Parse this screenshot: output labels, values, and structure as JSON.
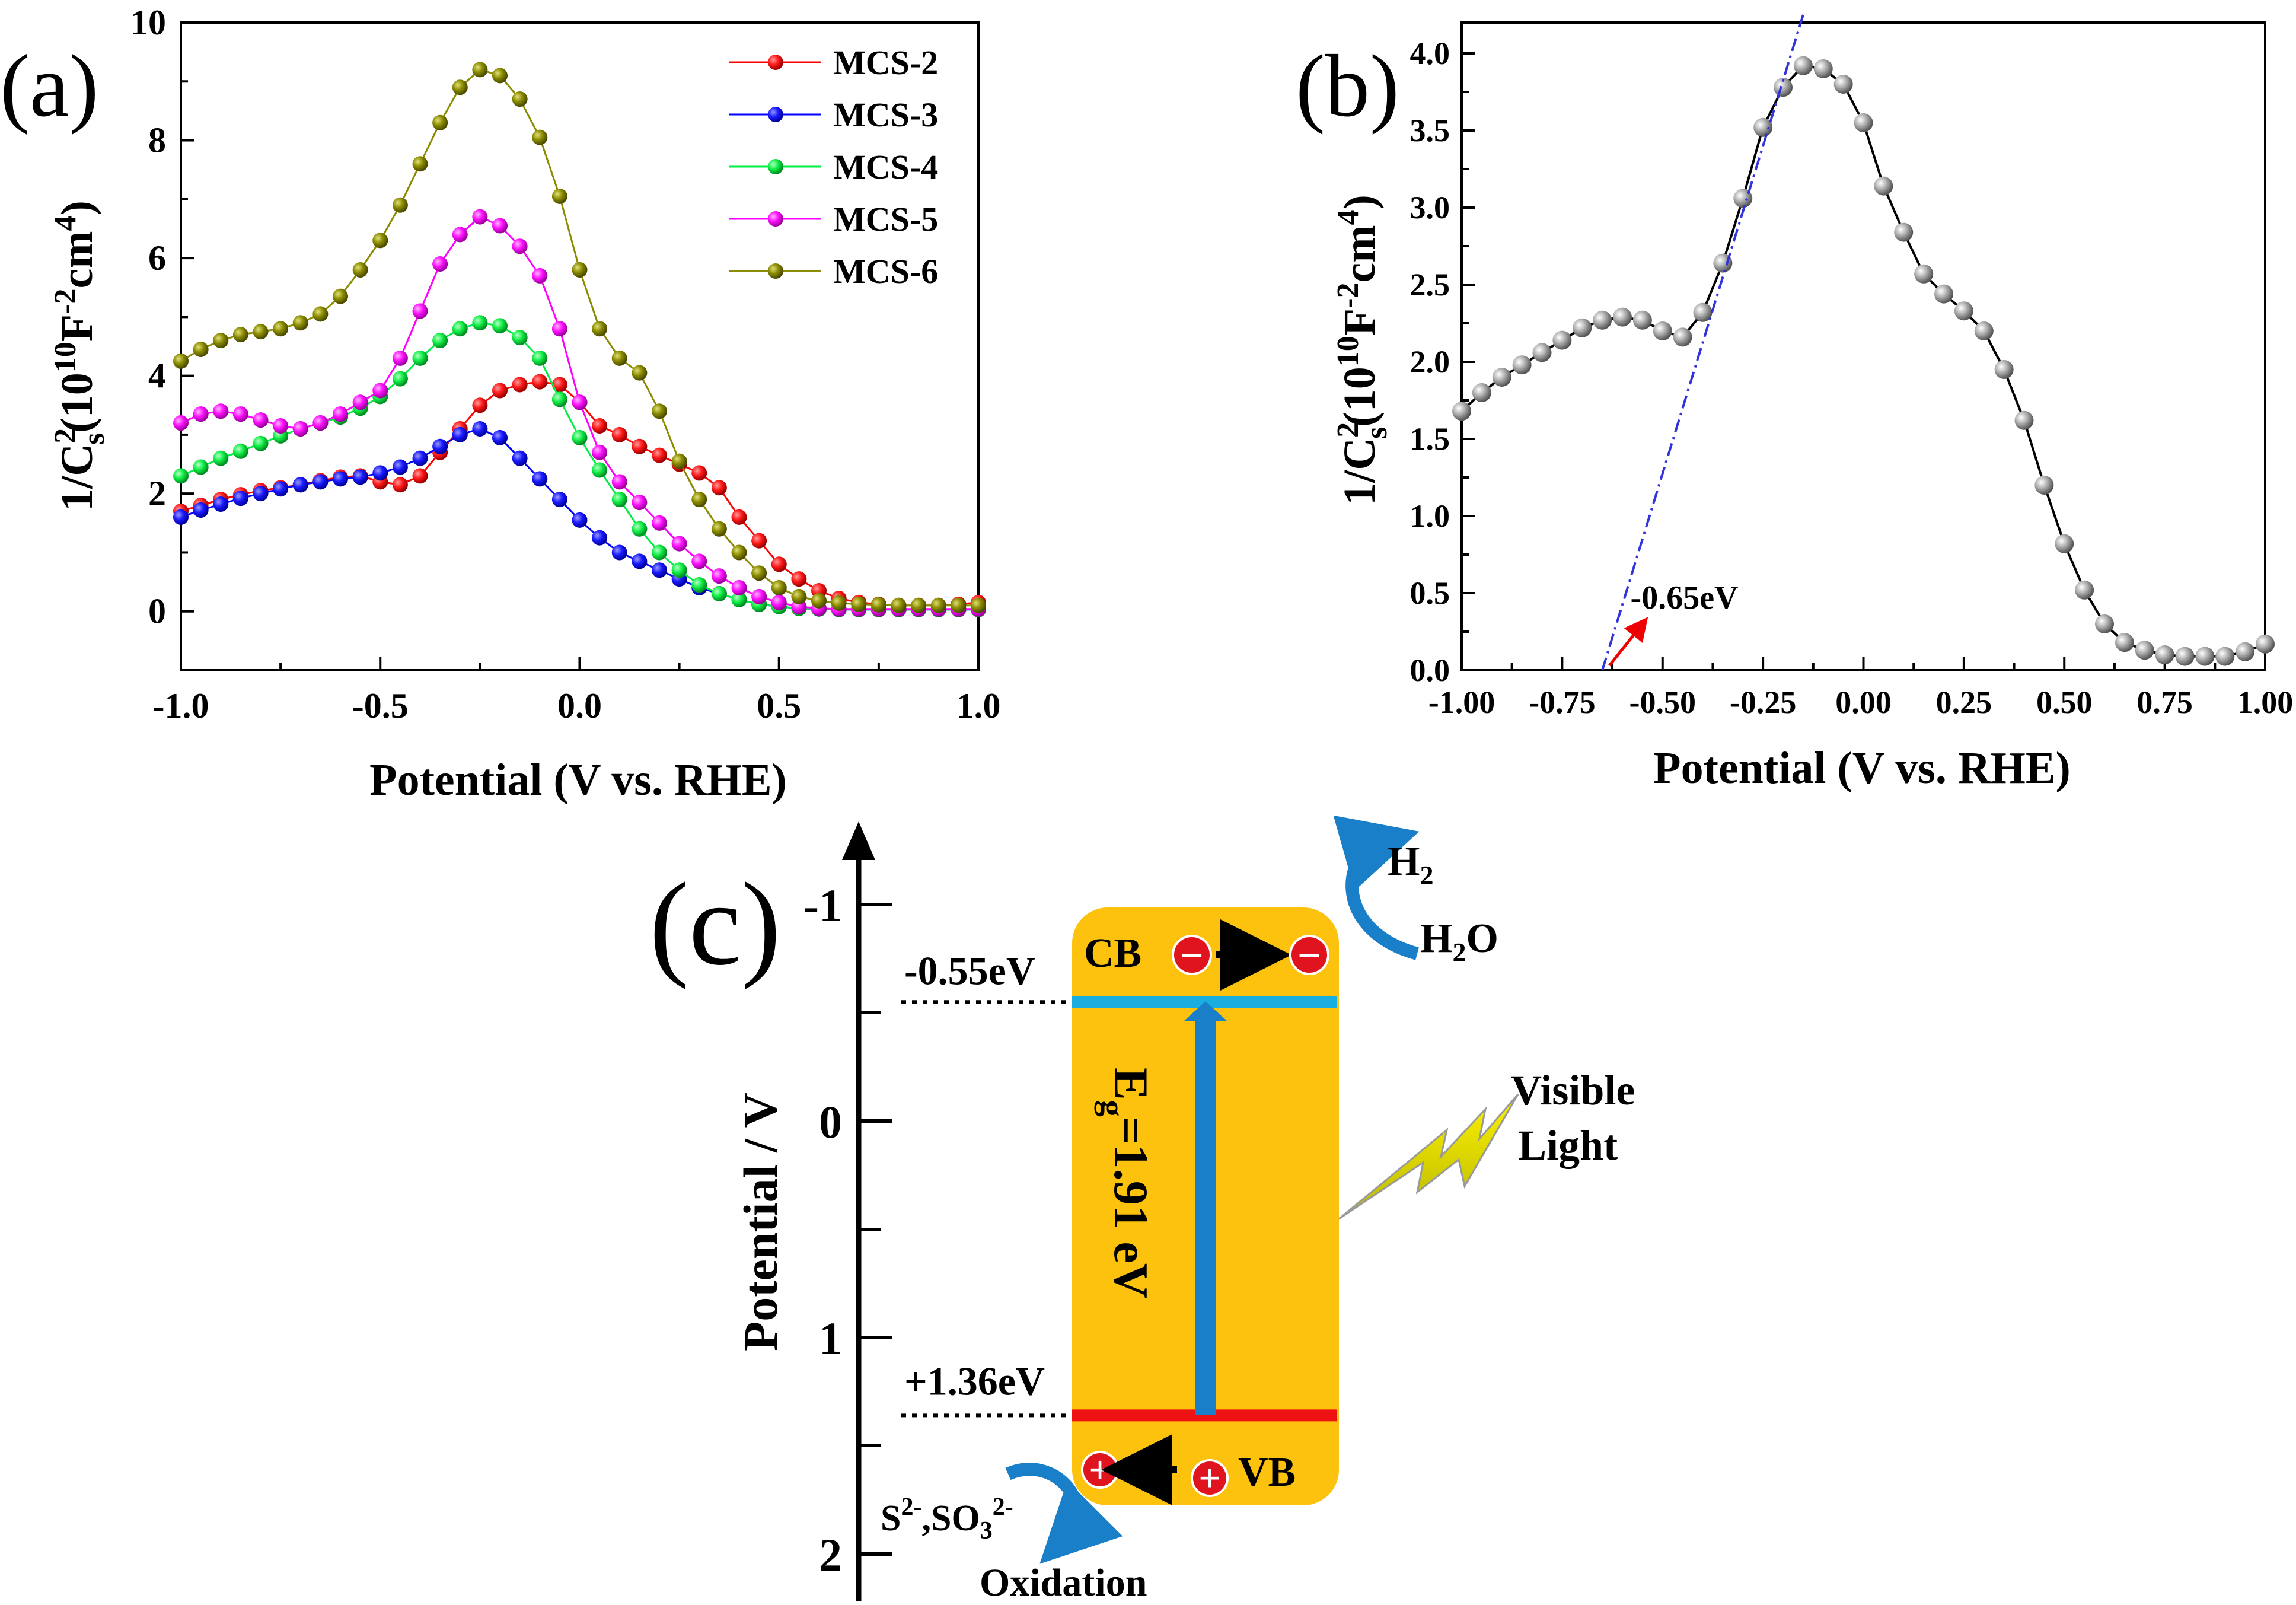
{
  "panel_labels": {
    "a": "(a)",
    "b": "(b)",
    "c": "(c)"
  },
  "chart_data": [
    {
      "panel": "a",
      "type": "line",
      "xlabel": "Potential (V vs. RHE)",
      "ylabel": "1/C",
      "ylabel_sup": "2",
      "ylabel_sub": "s",
      "ylabel_unit_open": "(10",
      "ylabel_unit_exp": "10",
      "ylabel_unit_f": "F",
      "ylabel_unit_fexp": "-2",
      "ylabel_unit_cm": "cm",
      "ylabel_unit_cmexp": "4",
      "ylabel_unit_close": ")",
      "xlim": [
        -1.0,
        1.0
      ],
      "ylim": [
        -1.0,
        10.0
      ],
      "xticks": [
        -1.0,
        -0.5,
        0.0,
        0.5,
        1.0
      ],
      "xtick_labels": [
        "-1.0",
        "-0.5",
        "0.0",
        "0.5",
        "1.0"
      ],
      "yticks": [
        0,
        2,
        4,
        6,
        8,
        10
      ],
      "ytick_labels": [
        "0",
        "2",
        "4",
        "6",
        "8",
        "10"
      ],
      "legend_position": "top-right",
      "x": [
        -1.0,
        -0.95,
        -0.9,
        -0.85,
        -0.8,
        -0.75,
        -0.7,
        -0.65,
        -0.6,
        -0.55,
        -0.5,
        -0.45,
        -0.4,
        -0.35,
        -0.3,
        -0.25,
        -0.2,
        -0.15,
        -0.1,
        -0.05,
        0.0,
        0.05,
        0.1,
        0.15,
        0.2,
        0.25,
        0.3,
        0.35,
        0.4,
        0.45,
        0.5,
        0.55,
        0.6,
        0.65,
        0.7,
        0.75,
        0.8,
        0.85,
        0.9,
        0.95,
        1.0
      ],
      "series": [
        {
          "name": "MCS-2",
          "color": "#ff0000",
          "values": [
            1.7,
            1.8,
            1.9,
            1.98,
            2.05,
            2.1,
            2.15,
            2.22,
            2.28,
            2.3,
            2.2,
            2.15,
            2.3,
            2.7,
            3.1,
            3.5,
            3.75,
            3.85,
            3.9,
            3.85,
            3.55,
            3.15,
            3.0,
            2.8,
            2.65,
            2.5,
            2.35,
            2.1,
            1.6,
            1.2,
            0.8,
            0.55,
            0.35,
            0.22,
            0.15,
            0.12,
            0.1,
            0.1,
            0.1,
            0.12,
            0.15
          ]
        },
        {
          "name": "MCS-3",
          "color": "#0000ff",
          "values": [
            1.6,
            1.72,
            1.82,
            1.92,
            2.0,
            2.08,
            2.15,
            2.2,
            2.25,
            2.28,
            2.35,
            2.45,
            2.6,
            2.8,
            3.0,
            3.1,
            2.95,
            2.6,
            2.25,
            1.9,
            1.55,
            1.25,
            1.0,
            0.85,
            0.7,
            0.55,
            0.4,
            0.3,
            0.2,
            0.12,
            0.08,
            0.05,
            0.04,
            0.03,
            0.03,
            0.03,
            0.03,
            0.03,
            0.03,
            0.03,
            0.03
          ]
        },
        {
          "name": "MCS-4",
          "color": "#00ee44",
          "values": [
            2.3,
            2.45,
            2.6,
            2.72,
            2.85,
            2.98,
            3.1,
            3.2,
            3.3,
            3.45,
            3.65,
            3.95,
            4.3,
            4.6,
            4.8,
            4.9,
            4.85,
            4.65,
            4.3,
            3.6,
            2.95,
            2.4,
            1.9,
            1.4,
            1.0,
            0.7,
            0.45,
            0.3,
            0.2,
            0.12,
            0.08,
            0.05,
            0.04,
            0.03,
            0.03,
            0.03,
            0.03,
            0.03,
            0.03,
            0.03,
            0.03
          ]
        },
        {
          "name": "MCS-5",
          "color": "#ff00ff",
          "values": [
            3.2,
            3.35,
            3.4,
            3.35,
            3.25,
            3.15,
            3.1,
            3.2,
            3.35,
            3.55,
            3.75,
            4.3,
            5.1,
            5.9,
            6.4,
            6.7,
            6.55,
            6.2,
            5.7,
            4.8,
            3.55,
            2.7,
            2.2,
            1.85,
            1.5,
            1.15,
            0.85,
            0.6,
            0.4,
            0.25,
            0.15,
            0.08,
            0.05,
            0.04,
            0.04,
            0.04,
            0.04,
            0.04,
            0.04,
            0.04,
            0.04
          ]
        },
        {
          "name": "MCS-6",
          "color": "#8b8b00",
          "values": [
            4.25,
            4.45,
            4.6,
            4.7,
            4.75,
            4.8,
            4.9,
            5.05,
            5.35,
            5.8,
            6.3,
            6.9,
            7.6,
            8.3,
            8.9,
            9.2,
            9.1,
            8.7,
            8.05,
            7.05,
            5.8,
            4.8,
            4.3,
            4.05,
            3.4,
            2.55,
            1.9,
            1.4,
            1.0,
            0.65,
            0.4,
            0.25,
            0.18,
            0.14,
            0.12,
            0.11,
            0.1,
            0.1,
            0.1,
            0.1,
            0.1
          ]
        }
      ]
    },
    {
      "panel": "b",
      "type": "scatter",
      "xlabel": "Potential (V vs. RHE)",
      "ylabel": "1/C",
      "ylabel_sup": "2",
      "ylabel_sub": "s",
      "ylabel_unit_open": "(10",
      "ylabel_unit_exp": "10",
      "ylabel_unit_f": "F",
      "ylabel_unit_fexp": "-2",
      "ylabel_unit_cm": "cm",
      "ylabel_unit_cmexp": "4",
      "ylabel_unit_close": ")",
      "xlim": [
        -1.0,
        1.0
      ],
      "ylim": [
        0.0,
        4.2
      ],
      "xticks": [
        -1.0,
        -0.75,
        -0.5,
        -0.25,
        0.0,
        0.25,
        0.5,
        0.75,
        1.0
      ],
      "xtick_labels": [
        "-1.00",
        "-0.75",
        "-0.50",
        "-0.25",
        "0.00",
        "0.25",
        "0.50",
        "0.75",
        "1.00"
      ],
      "yticks": [
        0.0,
        0.5,
        1.0,
        1.5,
        2.0,
        2.5,
        3.0,
        3.5,
        4.0
      ],
      "ytick_labels": [
        "0.0",
        "0.5",
        "1.0",
        "1.5",
        "2.0",
        "2.5",
        "3.0",
        "3.5",
        "4.0"
      ],
      "x": [
        -1.0,
        -0.95,
        -0.9,
        -0.85,
        -0.8,
        -0.75,
        -0.7,
        -0.65,
        -0.6,
        -0.55,
        -0.5,
        -0.45,
        -0.4,
        -0.35,
        -0.3,
        -0.25,
        -0.2,
        -0.15,
        -0.1,
        -0.05,
        0.0,
        0.05,
        0.1,
        0.15,
        0.2,
        0.25,
        0.3,
        0.35,
        0.4,
        0.45,
        0.5,
        0.55,
        0.6,
        0.65,
        0.7,
        0.75,
        0.8,
        0.85,
        0.9,
        0.95,
        1.0
      ],
      "values": [
        1.68,
        1.8,
        1.9,
        1.98,
        2.06,
        2.14,
        2.22,
        2.27,
        2.29,
        2.27,
        2.2,
        2.16,
        2.32,
        2.64,
        3.06,
        3.52,
        3.78,
        3.92,
        3.9,
        3.8,
        3.55,
        3.14,
        2.84,
        2.57,
        2.44,
        2.33,
        2.2,
        1.95,
        1.62,
        1.2,
        0.82,
        0.52,
        0.3,
        0.18,
        0.13,
        0.1,
        0.09,
        0.09,
        0.09,
        0.12,
        0.17
      ],
      "fit_line": {
        "x_intercept": -0.65,
        "color": "#3333dd",
        "x_start": -0.65,
        "x_end": -0.15,
        "y_start": 0.0,
        "y_end": 4.25
      },
      "annotation": {
        "text": "-0.65eV",
        "x": -0.48,
        "y": 0.45,
        "arrow_color": "#ee0000"
      }
    }
  ],
  "diagram_c": {
    "y_axis_label": "Potential / V",
    "yticks": [
      -1,
      0,
      1,
      2
    ],
    "ytick_labels": [
      "-1",
      "0",
      "1",
      "2"
    ],
    "box_color": "#fdc20e",
    "cb_label": "CB",
    "vb_label": "VB",
    "cb_value_label": "-0.55eV",
    "vb_value_label": "+1.36eV",
    "cb_potential": -0.55,
    "vb_potential": 1.36,
    "cb_line_color": "#1aaee0",
    "vb_line_color": "#ee1111",
    "band_gap_label": "E",
    "band_gap_sub": "g",
    "band_gap_value": "=1.91 eV",
    "arrow_color": "#1a7fc9",
    "electron_symbol": "−",
    "hole_symbol": "+",
    "h2_label": "H",
    "h2_sub": "2",
    "h2o_label_h": "H",
    "h2o_label_sub": "2",
    "h2o_label_o": "O",
    "oxidation_reagent": "S",
    "oxidation_reagent_sup": "2-",
    "oxidation_reagent_so": ",SO",
    "oxidation_reagent_sub": "3",
    "oxidation_reagent_sup2": "2-",
    "oxidation_label": "Oxidation",
    "visible_light_line1": "Visible",
    "visible_light_line2": "Light"
  }
}
